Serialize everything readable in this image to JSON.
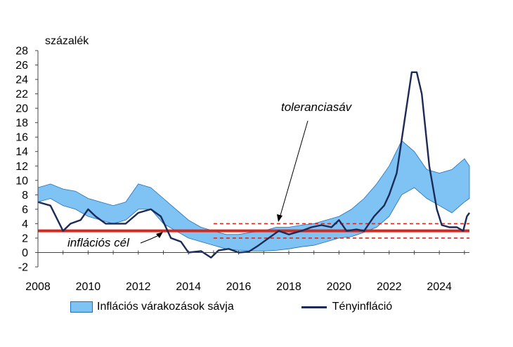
{
  "chart_data": {
    "type": "area",
    "unit_label": "százalék",
    "xlim": [
      2008,
      2025.2
    ],
    "ylim": [
      -2,
      28
    ],
    "x_ticks": [
      "2008",
      "2010",
      "2012",
      "2014",
      "2016",
      "2018",
      "2020",
      "2022",
      "2024"
    ],
    "y_ticks": [
      "28",
      "26",
      "24",
      "22",
      "20",
      "18",
      "16",
      "14",
      "12",
      "10",
      "8",
      "6",
      "4",
      "2",
      "0",
      "-2"
    ],
    "band": {
      "name": "Inflációs várakozások sávja",
      "color": "#7fc3f5",
      "edge_color": "#1f6fb5",
      "x": [
        2008.0,
        2008.5,
        2009.0,
        2009.5,
        2010.0,
        2010.5,
        2011.0,
        2011.5,
        2012.0,
        2012.5,
        2013.0,
        2013.5,
        2014.0,
        2014.5,
        2015.0,
        2015.5,
        2016.0,
        2016.5,
        2017.0,
        2017.5,
        2018.0,
        2018.5,
        2019.0,
        2019.5,
        2020.0,
        2020.5,
        2021.0,
        2021.5,
        2022.0,
        2022.5,
        2023.0,
        2023.5,
        2024.0,
        2024.5,
        2025.0,
        2025.2
      ],
      "upper": [
        9.0,
        9.5,
        8.8,
        8.5,
        7.5,
        7.0,
        6.5,
        7.0,
        9.5,
        9.0,
        7.5,
        6.0,
        4.5,
        3.5,
        3.0,
        2.5,
        2.5,
        2.8,
        3.0,
        3.5,
        3.5,
        3.8,
        4.0,
        4.5,
        5.0,
        6.0,
        7.5,
        9.5,
        12.0,
        15.5,
        14.0,
        11.5,
        11.0,
        11.5,
        13.0,
        12.0
      ],
      "lower": [
        7.0,
        7.5,
        6.5,
        6.0,
        5.0,
        4.5,
        4.0,
        4.5,
        6.0,
        6.0,
        4.0,
        3.0,
        2.0,
        1.5,
        1.0,
        0.5,
        0.3,
        0.2,
        0.2,
        0.3,
        0.5,
        0.8,
        1.0,
        1.5,
        2.0,
        2.2,
        2.8,
        3.5,
        5.0,
        8.0,
        9.0,
        7.5,
        6.5,
        5.5,
        7.0,
        7.5
      ]
    },
    "series": [
      {
        "name": "Tényinfláció",
        "color": "#1b2a57",
        "x": [
          2008.0,
          2008.5,
          2009.0,
          2009.3,
          2009.7,
          2010.0,
          2010.3,
          2010.7,
          2011.0,
          2011.5,
          2012.0,
          2012.5,
          2012.9,
          2013.3,
          2013.7,
          2014.0,
          2014.5,
          2014.9,
          2015.2,
          2015.6,
          2016.0,
          2016.4,
          2016.8,
          2017.2,
          2017.6,
          2018.0,
          2018.5,
          2018.9,
          2019.3,
          2019.7,
          2020.0,
          2020.3,
          2020.7,
          2021.0,
          2021.4,
          2021.8,
          2022.0,
          2022.3,
          2022.6,
          2022.9,
          2023.1,
          2023.3,
          2023.6,
          2023.9,
          2024.1,
          2024.4,
          2024.7,
          2024.95,
          2025.1,
          2025.2
        ],
        "y": [
          7.0,
          6.5,
          3.0,
          4.0,
          4.5,
          6.0,
          5.0,
          4.0,
          4.0,
          4.0,
          5.5,
          6.0,
          5.0,
          2.0,
          1.5,
          0.0,
          0.2,
          -0.7,
          0.3,
          0.5,
          0.0,
          0.1,
          1.0,
          2.0,
          3.0,
          2.5,
          3.0,
          3.5,
          3.8,
          3.5,
          4.5,
          3.0,
          3.2,
          3.0,
          5.0,
          6.5,
          8.0,
          11.0,
          18.0,
          25.0,
          25.0,
          22.0,
          12.0,
          6.0,
          3.8,
          3.5,
          3.5,
          3.0,
          5.0,
          5.5
        ]
      }
    ],
    "target": {
      "label": "inflációs cél",
      "value": 3,
      "color": "#d6281c"
    },
    "tolerance": {
      "label": "toleranciasáv",
      "upper": 4,
      "lower": 2,
      "x_start": 2015.0,
      "color": "#d6281c"
    }
  }
}
